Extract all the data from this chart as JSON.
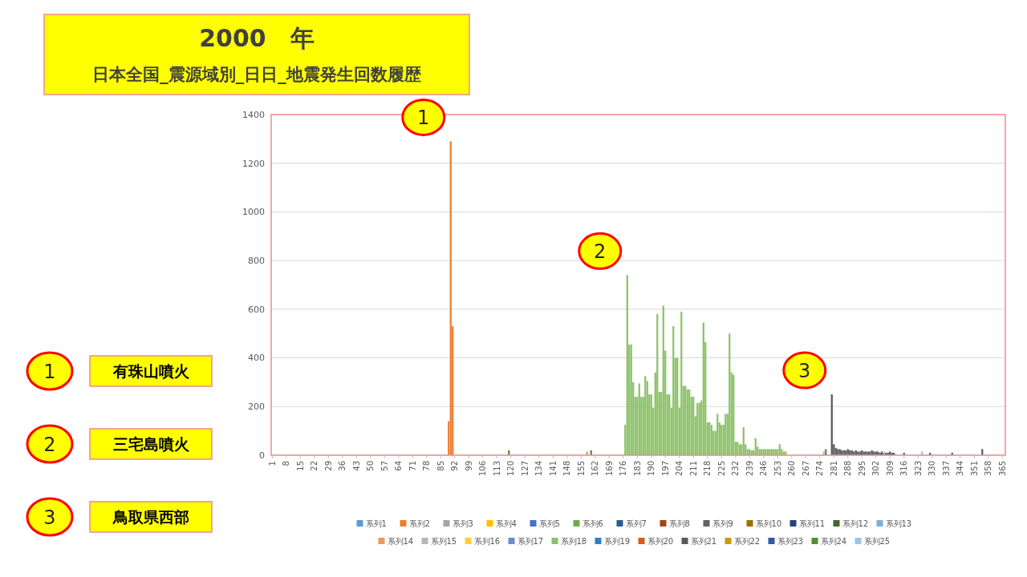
{
  "chart_data": {
    "type": "bar",
    "title": "2000　年",
    "subtitle": "日本全国_震源域別_日日_地震発生回数履歴",
    "xlim": [
      0.5,
      366.5
    ],
    "xticks": [
      1,
      8,
      15,
      22,
      29,
      36,
      43,
      50,
      57,
      64,
      71,
      78,
      85,
      92,
      99,
      106,
      113,
      120,
      127,
      134,
      141,
      148,
      155,
      162,
      169,
      176,
      183,
      190,
      197,
      204,
      211,
      218,
      225,
      232,
      239,
      246,
      253,
      260,
      267,
      274,
      281,
      288,
      295,
      302,
      309,
      316,
      323,
      330,
      337,
      344,
      351,
      358,
      365
    ],
    "ylim": [
      0,
      1400
    ],
    "yticks": [
      0,
      200,
      400,
      600,
      800,
      1000,
      1200,
      1400
    ],
    "grid": "y",
    "legend": "bottom",
    "annotations": [
      {
        "text": "1",
        "x": 90,
        "y": 1290
      },
      {
        "text": "2",
        "x": 178,
        "y": 740
      },
      {
        "text": "3",
        "x": 280,
        "y": 250
      },
      "1",
      "有珠山噴火",
      "2",
      "三宅島噴火",
      "3",
      "鳥取県西部"
    ],
    "series": [
      {
        "name": "系列1",
        "color": "#5b9bd5"
      },
      {
        "name": "系列2",
        "color": "#ed7d31",
        "x": [
          89,
          90,
          91
        ],
        "values": [
          140,
          1290,
          530
        ]
      },
      {
        "name": "系列3",
        "color": "#a5a5a5"
      },
      {
        "name": "系列4",
        "color": "#ffc000"
      },
      {
        "name": "系列5",
        "color": "#4472c4"
      },
      {
        "name": "系列6",
        "color": "#70ad47"
      },
      {
        "name": "系列7",
        "color": "#255e91"
      },
      {
        "name": "系列8",
        "color": "#9e480e"
      },
      {
        "name": "系列9",
        "color": "#636363"
      },
      {
        "name": "系列10",
        "color": "#997300"
      },
      {
        "name": "系列11",
        "color": "#264478"
      },
      {
        "name": "系列12",
        "color": "#43682b"
      },
      {
        "name": "系列13",
        "color": "#7cafdd"
      },
      {
        "name": "系列14",
        "color": "#f1975a",
        "x": [
          158
        ],
        "values": [
          15
        ]
      },
      {
        "name": "系列15",
        "color": "#b7b7b7"
      },
      {
        "name": "系列16",
        "color": "#ffcd33"
      },
      {
        "name": "系列17",
        "color": "#698ed0"
      },
      {
        "name": "系列18",
        "color": "#8cc168",
        "x": [
          177,
          178,
          179,
          180,
          181,
          182,
          183,
          184,
          185,
          186,
          187,
          188,
          189,
          190,
          191,
          192,
          193,
          194,
          195,
          196,
          197,
          198,
          199,
          200,
          201,
          202,
          203,
          204,
          205,
          206,
          207,
          208,
          209,
          210,
          211,
          212,
          213,
          214,
          215,
          216,
          217,
          218,
          219,
          220,
          221,
          222,
          223,
          224,
          225,
          226,
          227,
          228,
          229,
          230,
          231,
          232,
          233,
          234,
          235,
          236,
          237,
          238,
          239,
          240,
          241,
          242,
          243,
          244,
          245,
          246,
          247,
          248,
          249,
          250,
          251,
          252,
          253,
          254,
          255,
          256,
          257
        ],
        "values": [
          125,
          740,
          455,
          455,
          300,
          240,
          240,
          295,
          240,
          240,
          325,
          305,
          250,
          250,
          195,
          340,
          580,
          260,
          260,
          615,
          430,
          250,
          250,
          195,
          530,
          400,
          400,
          195,
          590,
          285,
          285,
          270,
          270,
          240,
          240,
          160,
          215,
          215,
          225,
          545,
          465,
          135,
          135,
          125,
          100,
          100,
          170,
          135,
          125,
          125,
          170,
          170,
          500,
          340,
          330,
          55,
          55,
          45,
          45,
          115,
          45,
          25,
          25,
          20,
          20,
          70,
          35,
          25,
          25,
          25,
          25,
          25,
          25,
          25,
          25,
          25,
          25,
          45,
          25,
          15,
          15
        ]
      },
      {
        "name": "系列19",
        "color": "#327dc2"
      },
      {
        "name": "系列20",
        "color": "#d26012"
      },
      {
        "name": "系列21",
        "color": "#5a5a5a",
        "x": [
          280,
          281,
          282,
          283,
          284,
          285,
          286,
          287,
          288,
          289,
          290,
          291,
          292,
          293,
          294,
          295,
          296,
          297,
          298,
          299,
          300,
          301,
          302,
          303,
          304,
          305,
          306,
          307,
          308,
          309,
          310,
          311,
          316,
          329,
          340,
          355
        ],
        "values": [
          250,
          45,
          30,
          25,
          25,
          20,
          20,
          20,
          25,
          20,
          20,
          15,
          20,
          15,
          15,
          20,
          15,
          15,
          15,
          15,
          20,
          15,
          15,
          15,
          10,
          15,
          10,
          10,
          10,
          15,
          10,
          10,
          10,
          10,
          10,
          25
        ]
      },
      {
        "name": "系列22",
        "color": "#cc9a00"
      },
      {
        "name": "系列23",
        "color": "#335aa1"
      },
      {
        "name": "系列24",
        "color": "#5a8a39",
        "x": [
          119,
          160,
          277
        ],
        "values": [
          20,
          20,
          25
        ]
      },
      {
        "name": "系列25",
        "color": "#9dc3e6",
        "x": [
          276,
          306,
          325
        ],
        "values": [
          15,
          15,
          15
        ]
      }
    ]
  }
}
